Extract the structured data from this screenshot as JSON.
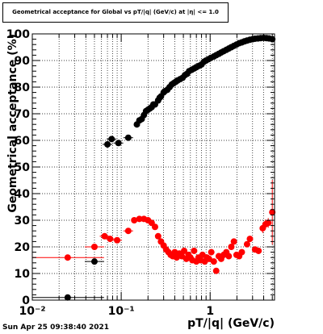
{
  "chart_data": {
    "type": "scatter",
    "title": "Geometrical acceptance for Global vs pT/|q| (GeV/c) at |η| <= 1.0",
    "xlabel": "pT/|q| (GeV/c)",
    "ylabel": "Geometrical acceptance (%)",
    "xscale": "log",
    "xlim": [
      0.01,
      5.3
    ],
    "ylim": [
      0,
      100
    ],
    "grid": true,
    "x_tick_labels": [
      "10⁻²",
      "10⁻¹",
      "1"
    ],
    "y_tick_labels": [
      "0",
      "10",
      "20",
      "30",
      "40",
      "50",
      "60",
      "70",
      "80",
      "90",
      "100"
    ],
    "series": [
      {
        "color": "#000000",
        "points": [
          [
            0.025,
            1
          ],
          [
            0.05,
            14.5
          ],
          [
            0.07,
            58.5
          ],
          [
            0.078,
            60.5
          ],
          [
            0.093,
            59
          ],
          [
            0.12,
            61
          ],
          [
            0.15,
            66
          ],
          [
            0.16,
            67.5
          ],
          [
            0.17,
            68
          ],
          [
            0.18,
            69.5
          ],
          [
            0.19,
            71
          ],
          [
            0.2,
            71.5
          ],
          [
            0.21,
            72
          ],
          [
            0.22,
            72.5
          ],
          [
            0.23,
            73.5
          ],
          [
            0.24,
            73.5
          ],
          [
            0.26,
            75
          ],
          [
            0.27,
            76
          ],
          [
            0.28,
            76.5
          ],
          [
            0.3,
            78
          ],
          [
            0.31,
            78.5
          ],
          [
            0.33,
            79
          ],
          [
            0.35,
            80
          ],
          [
            0.37,
            81
          ],
          [
            0.39,
            81.5
          ],
          [
            0.41,
            82
          ],
          [
            0.43,
            82.5
          ],
          [
            0.46,
            83
          ],
          [
            0.49,
            83.5
          ],
          [
            0.52,
            84.5
          ],
          [
            0.55,
            85
          ],
          [
            0.58,
            86
          ],
          [
            0.62,
            86.5
          ],
          [
            0.66,
            87
          ],
          [
            0.7,
            87.5
          ],
          [
            0.75,
            88
          ],
          [
            0.8,
            88.5
          ],
          [
            0.85,
            89.5
          ],
          [
            0.9,
            90
          ],
          [
            0.96,
            90.5
          ],
          [
            1.02,
            91
          ],
          [
            1.1,
            91.5
          ],
          [
            1.17,
            92
          ],
          [
            1.25,
            92.5
          ],
          [
            1.33,
            93
          ],
          [
            1.42,
            93.5
          ],
          [
            1.52,
            94
          ],
          [
            1.62,
            94.5
          ],
          [
            1.73,
            95
          ],
          [
            1.85,
            95.5
          ],
          [
            1.98,
            96
          ],
          [
            2.12,
            96.5
          ],
          [
            2.27,
            96.8
          ],
          [
            2.43,
            97.2
          ],
          [
            2.6,
            97.5
          ],
          [
            2.8,
            97.8
          ],
          [
            3.0,
            98
          ],
          [
            3.2,
            98.2
          ],
          [
            3.45,
            98.3
          ],
          [
            3.7,
            98.4
          ],
          [
            4.0,
            98.5
          ],
          [
            4.3,
            98.4
          ],
          [
            4.6,
            98.3
          ],
          [
            5.0,
            98
          ]
        ]
      },
      {
        "color": "#ff0000",
        "points": [
          [
            0.025,
            16
          ],
          [
            0.05,
            20
          ],
          [
            0.065,
            24
          ],
          [
            0.075,
            23
          ],
          [
            0.09,
            22.5
          ],
          [
            0.12,
            26
          ],
          [
            0.14,
            30
          ],
          [
            0.16,
            30.5
          ],
          [
            0.18,
            30.5
          ],
          [
            0.2,
            30
          ],
          [
            0.22,
            29
          ],
          [
            0.24,
            27.5
          ],
          [
            0.26,
            24
          ],
          [
            0.28,
            22
          ],
          [
            0.3,
            20.5
          ],
          [
            0.32,
            19
          ],
          [
            0.34,
            18
          ],
          [
            0.36,
            17
          ],
          [
            0.38,
            16.5
          ],
          [
            0.4,
            18
          ],
          [
            0.42,
            16
          ],
          [
            0.45,
            17.5
          ],
          [
            0.48,
            16.5
          ],
          [
            0.51,
            18.5
          ],
          [
            0.54,
            15.5
          ],
          [
            0.57,
            17
          ],
          [
            0.6,
            16
          ],
          [
            0.63,
            15
          ],
          [
            0.66,
            18.5
          ],
          [
            0.7,
            14.5
          ],
          [
            0.74,
            16
          ],
          [
            0.78,
            15
          ],
          [
            0.82,
            17
          ],
          [
            0.87,
            14.5
          ],
          [
            0.92,
            16
          ],
          [
            0.97,
            15.5
          ],
          [
            1.03,
            18
          ],
          [
            1.1,
            14.5
          ],
          [
            1.17,
            11
          ],
          [
            1.25,
            16.5
          ],
          [
            1.33,
            15.5
          ],
          [
            1.42,
            17
          ],
          [
            1.52,
            18
          ],
          [
            1.62,
            16.5
          ],
          [
            1.73,
            20
          ],
          [
            1.85,
            22
          ],
          [
            1.98,
            17
          ],
          [
            2.12,
            16.5
          ],
          [
            2.27,
            18
          ],
          [
            2.6,
            21
          ],
          [
            2.8,
            23
          ],
          [
            3.2,
            19
          ],
          [
            3.5,
            18.5
          ],
          [
            3.9,
            27
          ],
          [
            4.2,
            28.5
          ],
          [
            4.5,
            29
          ],
          [
            5.0,
            33
          ]
        ]
      }
    ]
  },
  "footer": {
    "timestamp": "Sun Apr 25 09:38:40 2021"
  }
}
